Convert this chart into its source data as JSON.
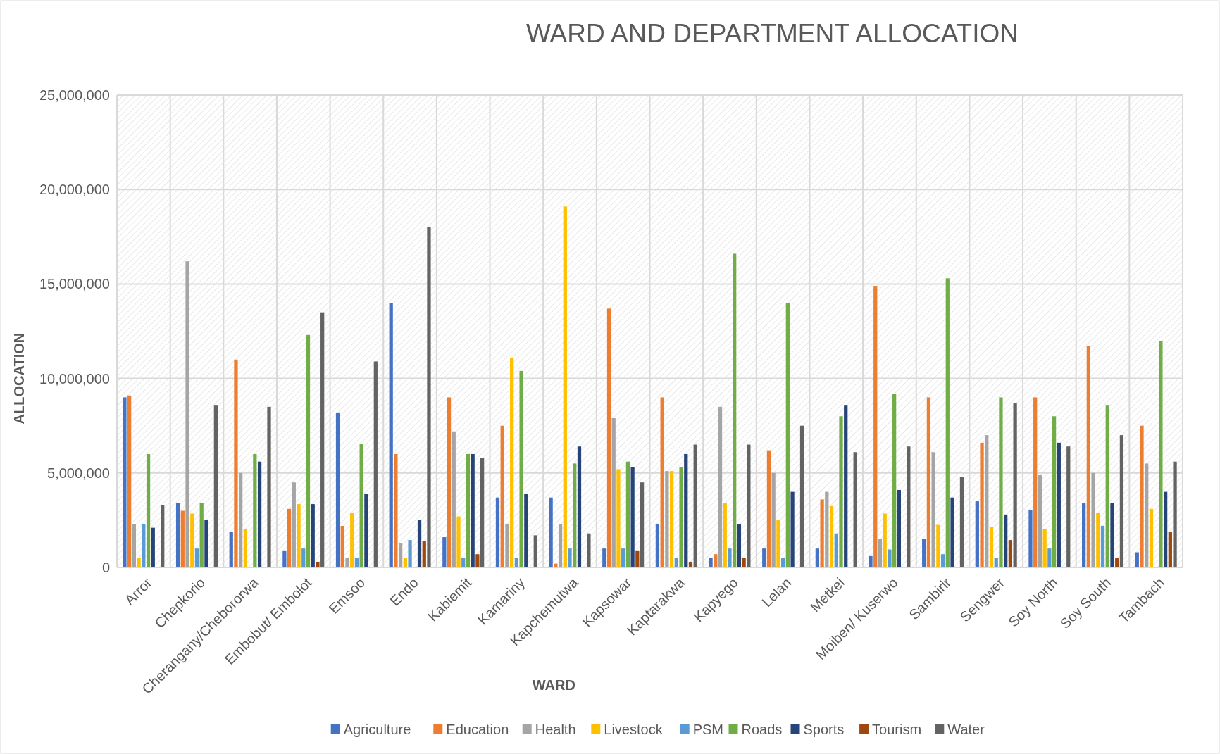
{
  "chart_data": {
    "type": "bar",
    "title": "WARD  AND DEPARTMENT ALLOCATION",
    "xlabel": "WARD",
    "ylabel": "ALLOCATION",
    "categories": [
      "Arror",
      "Chepkorio",
      "Cherangany/Chebororwa",
      "Embobut/ Embolot",
      "Emsoo",
      "Endo",
      "Kabiemit",
      "Kamariny",
      "Kapchemutwa",
      "Kapsowar",
      "Kaptarakwa",
      "Kapyego",
      "Lelan",
      "Metkei",
      "Moiben/ Kuserwo",
      "Sambirir",
      "Sengwer",
      "Soy North",
      "Soy South",
      "Tambach"
    ],
    "series": [
      {
        "name": "Agriculture",
        "color": "#4472c4",
        "values": [
          9000000,
          3400000,
          1900000,
          900000,
          8200000,
          14000000,
          1600000,
          3700000,
          3700000,
          1000000,
          2300000,
          500000,
          1000000,
          1000000,
          600000,
          1500000,
          3500000,
          3050000,
          3400000,
          800000
        ]
      },
      {
        "name": "Education",
        "color": "#ed7d31",
        "values": [
          9100000,
          3000000,
          11000000,
          3100000,
          2200000,
          6000000,
          9000000,
          7500000,
          200000,
          13700000,
          9000000,
          700000,
          6200000,
          3600000,
          14900000,
          9000000,
          6600000,
          9000000,
          11700000,
          7500000
        ]
      },
      {
        "name": "Health",
        "color": "#a5a5a5",
        "values": [
          2300000,
          16200000,
          5000000,
          4500000,
          500000,
          1300000,
          7200000,
          2300000,
          2300000,
          7900000,
          5100000,
          8500000,
          5000000,
          4000000,
          1500000,
          6100000,
          7000000,
          4900000,
          5000000,
          5500000
        ]
      },
      {
        "name": "Livestock",
        "color": "#ffc000",
        "values": [
          500000,
          2850000,
          2050000,
          3350000,
          2900000,
          500000,
          2700000,
          11100000,
          19100000,
          5200000,
          5100000,
          3400000,
          2500000,
          3250000,
          2850000,
          2250000,
          2150000,
          2050000,
          2900000,
          3100000
        ]
      },
      {
        "name": "PSM",
        "color": "#5b9bd5",
        "values": [
          2300000,
          1000000,
          null,
          1000000,
          500000,
          1450000,
          500000,
          500000,
          1000000,
          1000000,
          500000,
          1000000,
          500000,
          1800000,
          950000,
          700000,
          500000,
          1000000,
          2200000,
          null
        ]
      },
      {
        "name": "Roads",
        "color": "#70ad47",
        "values": [
          6000000,
          3400000,
          6000000,
          12300000,
          6550000,
          null,
          6000000,
          10400000,
          5500000,
          5600000,
          5300000,
          16600000,
          14000000,
          8000000,
          9200000,
          15300000,
          9000000,
          8000000,
          8600000,
          12000000
        ]
      },
      {
        "name": "Sports",
        "color": "#264478",
        "values": [
          2100000,
          2500000,
          5600000,
          3350000,
          3900000,
          2500000,
          6000000,
          3900000,
          6400000,
          5300000,
          6000000,
          2300000,
          4000000,
          8600000,
          4100000,
          3700000,
          2800000,
          6600000,
          3400000,
          4000000
        ]
      },
      {
        "name": "Tourism",
        "color": "#9e480e",
        "values": [
          null,
          null,
          null,
          300000,
          null,
          1400000,
          700000,
          null,
          null,
          900000,
          300000,
          500000,
          null,
          null,
          null,
          null,
          1450000,
          null,
          500000,
          1900000
        ]
      },
      {
        "name": "Water",
        "color": "#636363",
        "values": [
          3300000,
          8600000,
          8500000,
          13500000,
          10900000,
          18000000,
          5800000,
          1700000,
          1800000,
          4500000,
          6500000,
          6500000,
          7500000,
          6100000,
          6400000,
          4800000,
          8700000,
          6400000,
          7000000,
          5600000
        ]
      }
    ],
    "ylim": [
      0,
      25000000
    ],
    "yticks": [
      {
        "value": 0,
        "label": "0"
      },
      {
        "value": 5000000,
        "label": "5,000,000"
      },
      {
        "value": 10000000,
        "label": "10,000,000"
      },
      {
        "value": 15000000,
        "label": "15,000,000"
      },
      {
        "value": 20000000,
        "label": "20,000,000"
      },
      {
        "value": 25000000,
        "label": "25,000,000"
      }
    ],
    "grid": true,
    "legend": "bottom"
  }
}
